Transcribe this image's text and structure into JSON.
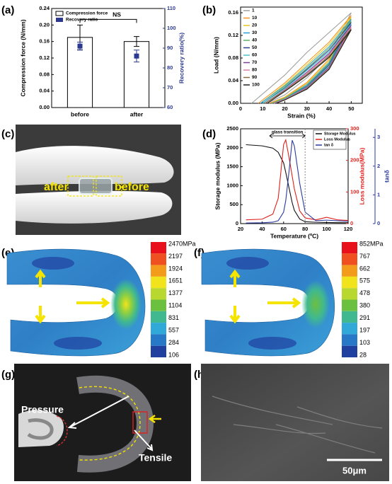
{
  "panel_labels": [
    "(a)",
    "(b)",
    "(c)",
    "(d)",
    "(e)",
    "(f)",
    "(g)",
    "(h)"
  ],
  "chart_data": [
    {
      "type": "bar",
      "categories": [
        "before",
        "after"
      ],
      "series": [
        {
          "name": "Compression force",
          "color": "#ffffff",
          "values": [
            0.17,
            0.16
          ],
          "errors": [
            0.03,
            0.012
          ]
        },
        {
          "name": "Recovery ratio",
          "color": "#2b3990",
          "axis": "y2",
          "marker": "square",
          "values": [
            91,
            86
          ],
          "errors": [
            2,
            3
          ]
        }
      ],
      "ylim": [
        0,
        0.24
      ],
      "yticks": [
        {
          "value": 0,
          "label": "0.00"
        },
        0.04,
        0.08,
        0.12,
        0.16,
        {
          "value": 0.2,
          "label": "0.20"
        },
        0.24
      ],
      "y2lim": [
        60,
        110
      ],
      "y2ticks": [
        60,
        70,
        80,
        90,
        100,
        110
      ],
      "ylabel": "Compression force (N/mm)",
      "y2label": "Recovery ratio(%)",
      "annotation": "NS"
    },
    {
      "type": "line",
      "series": [
        {
          "name": "1",
          "color": "#9e9e9e",
          "x": [
            5,
            20,
            30,
            40,
            50,
            40,
            30,
            20,
            12
          ],
          "values": [
            0,
            0.05,
            0.09,
            0.125,
            0.16,
            0.085,
            0.045,
            0.015,
            0
          ]
        },
        {
          "name": "10",
          "color": "#f7941d",
          "x": [
            8,
            20,
            30,
            40,
            50,
            40,
            30,
            20,
            13
          ],
          "values": [
            0,
            0.036,
            0.072,
            0.108,
            0.155,
            0.078,
            0.037,
            0.011,
            0
          ]
        },
        {
          "name": "20",
          "color": "#e6c619",
          "x": [
            9,
            20,
            30,
            40,
            50,
            40,
            30,
            20,
            14
          ],
          "values": [
            0,
            0.033,
            0.068,
            0.104,
            0.152,
            0.075,
            0.035,
            0.01,
            0
          ]
        },
        {
          "name": "30",
          "color": "#2a9fd6",
          "x": [
            9,
            20,
            30,
            40,
            50,
            40,
            30,
            20,
            14
          ],
          "values": [
            0,
            0.031,
            0.065,
            0.1,
            0.149,
            0.072,
            0.033,
            0.009,
            0
          ]
        },
        {
          "name": "40",
          "color": "#5fb35f",
          "x": [
            10,
            20,
            30,
            40,
            50,
            40,
            30,
            20,
            14
          ],
          "values": [
            0,
            0.029,
            0.062,
            0.097,
            0.146,
            0.07,
            0.031,
            0.009,
            0
          ]
        },
        {
          "name": "50",
          "color": "#2c3e91",
          "x": [
            10,
            20,
            30,
            40,
            50,
            40,
            30,
            20,
            15
          ],
          "values": [
            0,
            0.027,
            0.06,
            0.094,
            0.143,
            0.068,
            0.03,
            0.008,
            0
          ]
        },
        {
          "name": "60",
          "color": "#4fc3c7",
          "x": [
            10,
            20,
            30,
            40,
            50,
            40,
            30,
            20,
            15
          ],
          "values": [
            0,
            0.026,
            0.058,
            0.091,
            0.14,
            0.066,
            0.029,
            0.008,
            0
          ]
        },
        {
          "name": "70",
          "color": "#7a3f96",
          "x": [
            11,
            20,
            30,
            40,
            50,
            40,
            30,
            20,
            15
          ],
          "values": [
            0,
            0.024,
            0.055,
            0.088,
            0.138,
            0.064,
            0.028,
            0.007,
            0
          ]
        },
        {
          "name": "80",
          "color": "#d87fa9",
          "x": [
            11,
            20,
            30,
            40,
            50,
            40,
            30,
            20,
            15
          ],
          "values": [
            0,
            0.023,
            0.053,
            0.086,
            0.135,
            0.062,
            0.027,
            0.007,
            0
          ]
        },
        {
          "name": "90",
          "color": "#8a6d3b",
          "x": [
            11,
            20,
            30,
            40,
            50,
            40,
            30,
            20,
            16
          ],
          "values": [
            0,
            0.022,
            0.051,
            0.083,
            0.132,
            0.061,
            0.026,
            0.006,
            0
          ]
        },
        {
          "name": "100",
          "color": "#222222",
          "x": [
            12,
            20,
            30,
            40,
            50,
            40,
            30,
            20,
            16
          ],
          "values": [
            0,
            0.021,
            0.049,
            0.081,
            0.13,
            0.06,
            0.025,
            0.006,
            0
          ]
        }
      ],
      "xlim": [
        0,
        55
      ],
      "xticks": [
        0,
        10,
        20,
        30,
        40,
        50
      ],
      "ylim": [
        0,
        0.17
      ],
      "yticks": [
        {
          "value": 0,
          "label": "0.00"
        },
        0.04,
        0.08,
        0.12,
        0.16
      ],
      "xlabel": "Strain (%)",
      "ylabel": "Load (N/mm)"
    },
    {
      "type": "line",
      "x": [
        25,
        40,
        50,
        55,
        60,
        62,
        65,
        68,
        70,
        75,
        80,
        90,
        100,
        110,
        120
      ],
      "series": [
        {
          "name": "Storage Modulus",
          "color": "#111111",
          "values": [
            2080,
            2050,
            1990,
            1880,
            1600,
            1350,
            950,
            550,
            350,
            120,
            50,
            35,
            30,
            25,
            25
          ]
        },
        {
          "name": "Loss Modulus",
          "color": "#e0201b",
          "axis": "y2",
          "values": [
            12,
            14,
            30,
            80,
            250,
            265,
            210,
            150,
            110,
            40,
            18,
            12,
            20,
            12,
            10
          ]
        },
        {
          "name": "tan δ",
          "color": "#2b3aa0",
          "axis": "y3",
          "values": [
            0.02,
            0.03,
            0.05,
            0.1,
            0.4,
            0.8,
            1.8,
            2.9,
            2.7,
            1.4,
            0.4,
            0.1,
            0.12,
            0.1,
            0.08
          ]
        }
      ],
      "xlim": [
        20,
        120
      ],
      "xticks": [
        20,
        40,
        60,
        80,
        100,
        120
      ],
      "ylim": [
        0,
        2500
      ],
      "yticks": [
        0,
        500,
        1000,
        1500,
        2000,
        2500
      ],
      "y2lim": [
        0,
        300
      ],
      "y2ticks": [
        0,
        100,
        200,
        300
      ],
      "y3lim": [
        0,
        3.3
      ],
      "y3ticks": [
        0,
        1,
        2,
        3
      ],
      "xlabel": "Temperature (ºC)",
      "ylabel": "Storage modulus (MPa)",
      "y2label": "Loss modulus(MPa)",
      "y3label": "tanδ",
      "annotation": {
        "text": "glass transition",
        "x_start": 47,
        "x_end": 80
      }
    }
  ],
  "photo_c": {
    "labels": [
      "after",
      "before"
    ]
  },
  "fea": [
    {
      "colorbar_labels": [
        "2470MPa",
        "2197",
        "1924",
        "1651",
        "1377",
        "1104",
        "831",
        "557",
        "284",
        "106"
      ],
      "colors": [
        "#e8101a",
        "#f05020",
        "#f39c1c",
        "#f2e41c",
        "#b8d830",
        "#6cc040",
        "#40b890",
        "#30a8d8",
        "#2878c8",
        "#2040a0"
      ]
    },
    {
      "colorbar_labels": [
        "852MPa",
        "767",
        "662",
        "575",
        "478",
        "380",
        "291",
        "197",
        "103",
        "28"
      ],
      "colors": [
        "#e8101a",
        "#f05020",
        "#f39c1c",
        "#f2e41c",
        "#b8d830",
        "#6cc040",
        "#40b890",
        "#30a8d8",
        "#2878c8",
        "#2040a0"
      ]
    }
  ],
  "photo_g": {
    "labels": [
      "Pressure",
      "Tensile"
    ]
  },
  "photo_h": {
    "scale_bar": "50μm"
  }
}
